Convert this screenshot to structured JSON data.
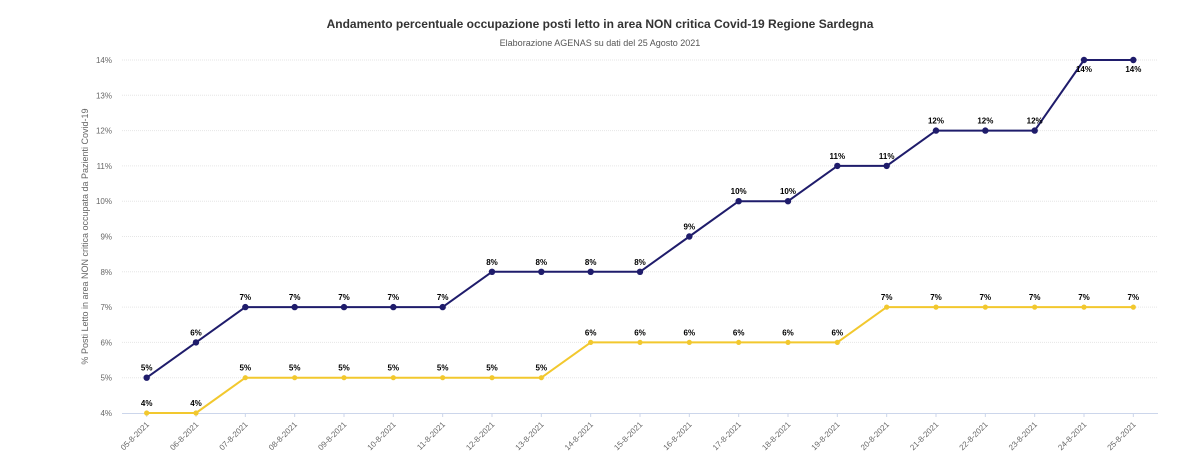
{
  "chart_data": {
    "type": "line",
    "title": "Andamento percentuale occupazione posti letto in area NON critica Covid-19 Regione Sardegna",
    "subtitle": "Elaborazione AGENAS su dati del 25 Agosto 2021",
    "ylabel": "% Posti Letto in area NON critica occupata da Pazienti Covid-19",
    "xlabel": "",
    "ylim": [
      4,
      14
    ],
    "yticks": [
      "4%",
      "5%",
      "6%",
      "7%",
      "8%",
      "9%",
      "10%",
      "11%",
      "12%",
      "13%",
      "14%"
    ],
    "grid": true,
    "categories": [
      "05-8-2021",
      "06-8-2021",
      "07-8-2021",
      "08-8-2021",
      "09-8-2021",
      "10-8-2021",
      "11-8-2021",
      "12-8-2021",
      "13-8-2021",
      "14-8-2021",
      "15-8-2021",
      "16-8-2021",
      "17-8-2021",
      "18-8-2021",
      "19-8-2021",
      "20-8-2021",
      "21-8-2021",
      "22-8-2021",
      "23-8-2021",
      "24-8-2021",
      "25-8-2021"
    ],
    "series": [
      {
        "color": "#1f1c6b",
        "values": [
          5,
          6,
          7,
          7,
          7,
          7,
          7,
          8,
          8,
          8,
          8,
          9,
          10,
          10,
          11,
          11,
          12,
          12,
          12,
          14,
          14
        ],
        "labels": [
          "5%",
          "6%",
          "7%",
          "7%",
          "7%",
          "7%",
          "7%",
          "8%",
          "8%",
          "8%",
          "8%",
          "9%",
          "10%",
          "10%",
          "11%",
          "11%",
          "12%",
          "12%",
          "12%",
          "14%",
          "14%"
        ]
      },
      {
        "color": "#f2c82e",
        "values": [
          4,
          4,
          5,
          5,
          5,
          5,
          5,
          5,
          5,
          6,
          6,
          6,
          6,
          6,
          6,
          7,
          7,
          7,
          7,
          7,
          7
        ],
        "labels": [
          "4%",
          "4%",
          "5%",
          "5%",
          "5%",
          "5%",
          "5%",
          "5%",
          "5%",
          "6%",
          "6%",
          "6%",
          "6%",
          "6%",
          "6%",
          "7%",
          "7%",
          "7%",
          "7%",
          "7%",
          "7%"
        ]
      }
    ]
  }
}
